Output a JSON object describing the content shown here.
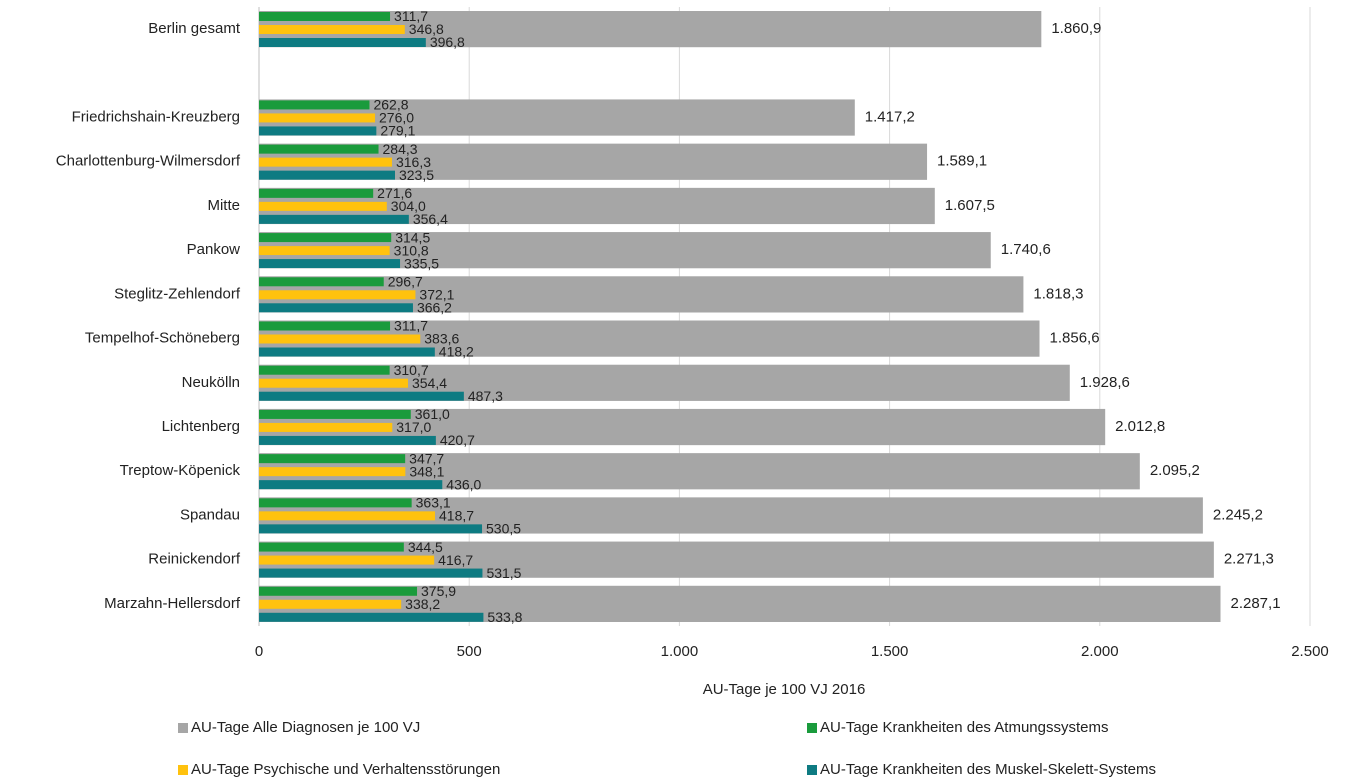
{
  "chart_data": {
    "type": "bar",
    "orientation": "horizontal",
    "x_label": "AU-Tage je 100 VJ 2016",
    "categories": [
      "Berlin gesamt",
      null,
      "Friedrichshain-Kreuzberg",
      "Charlottenburg-Wilmersdorf",
      "Mitte",
      "Pankow",
      "Steglitz-Zehlendorf",
      "Tempelhof-Schöneberg",
      "Neukölln",
      "Lichtenberg",
      "Treptow-Köpenick",
      "Spandau",
      "Reinickendorf",
      "Marzahn-Hellersdorf"
    ],
    "series": [
      {
        "name": "AU-Tage Alle Diagnosen je 100 VJ",
        "color": "#a6a6a6",
        "values": [
          1860.9,
          null,
          1417.2,
          1589.1,
          1607.5,
          1740.6,
          1818.3,
          1856.6,
          1928.6,
          2012.8,
          2095.2,
          2245.2,
          2271.3,
          2287.1
        ],
        "value_labels": [
          "1.860,9",
          null,
          "1.417,2",
          "1.589,1",
          "1.607,5",
          "1.740,6",
          "1.818,3",
          "1.856,6",
          "1.928,6",
          "2.012,8",
          "2.095,2",
          "2.245,2",
          "2.271,3",
          "2.287,1"
        ]
      },
      {
        "name": "AU-Tage Krankheiten des Atmungssystems",
        "color": "#1a9b3c",
        "values": [
          311.7,
          null,
          262.8,
          284.3,
          271.6,
          314.5,
          296.7,
          311.7,
          310.7,
          361.0,
          347.7,
          363.1,
          344.5,
          375.9
        ],
        "value_labels": [
          "311,7",
          null,
          "262,8",
          "284,3",
          "271,6",
          "314,5",
          "296,7",
          "311,7",
          "310,7",
          "361,0",
          "347,7",
          "363,1",
          "344,5",
          "375,9"
        ]
      },
      {
        "name": "AU-Tage Psychische und Verhaltensstörungen",
        "color": "#ffc20e",
        "values": [
          346.8,
          null,
          276.0,
          316.3,
          304.0,
          310.8,
          372.1,
          383.6,
          354.4,
          317.0,
          348.1,
          418.7,
          416.7,
          338.2
        ],
        "value_labels": [
          "346,8",
          null,
          "276,0",
          "316,3",
          "304,0",
          "310,8",
          "372,1",
          "383,6",
          "354,4",
          "317,0",
          "348,1",
          "418,7",
          "416,7",
          "338,2"
        ]
      },
      {
        "name": "AU-Tage Krankheiten des Muskel-Skelett-Systems",
        "color": "#0e7b82",
        "values": [
          396.8,
          null,
          279.1,
          323.5,
          356.4,
          335.5,
          366.2,
          418.2,
          487.3,
          420.7,
          436.0,
          530.5,
          531.5,
          533.8
        ],
        "value_labels": [
          "396,8",
          null,
          "279,1",
          "323,5",
          "356,4",
          "335,5",
          "366,2",
          "418,2",
          "487,3",
          "420,7",
          "436,0",
          "530,5",
          "531,5",
          "533,8"
        ]
      }
    ],
    "xlim": [
      0,
      2500
    ],
    "xticks": [
      0,
      500,
      {
        "value": 1000,
        "label": "1.000"
      },
      {
        "value": 1500,
        "label": "1.500"
      },
      {
        "value": 2000,
        "label": "2.000"
      },
      {
        "value": 2500,
        "label": "2.500"
      }
    ],
    "grid": true,
    "legend": "bottom"
  }
}
